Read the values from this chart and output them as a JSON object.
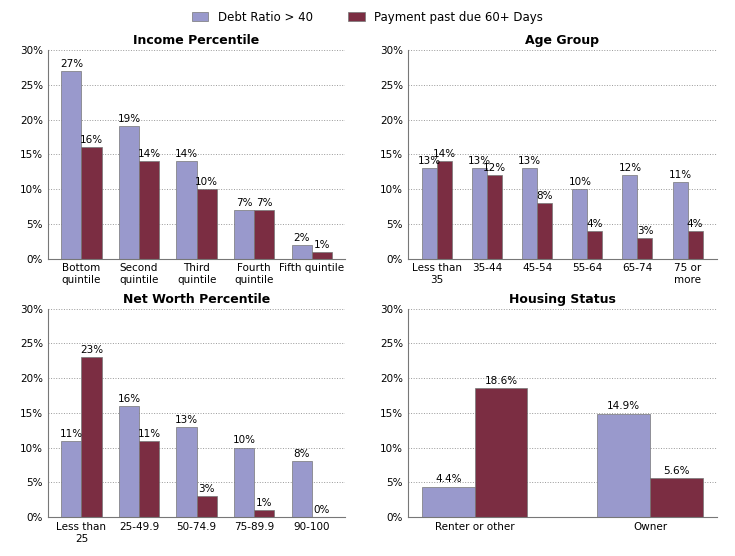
{
  "legend": {
    "label1": "Debt Ratio > 40",
    "label2": "Payment past due 60+ Days",
    "color1": "#9999CC",
    "color2": "#7B2D42"
  },
  "income": {
    "title": "Income Percentile",
    "categories": [
      "Bottom\nquintile",
      "Second\nquintile",
      "Third\nquintile",
      "Fourth\nquintile",
      "Fifth quintile"
    ],
    "debt": [
      27,
      19,
      14,
      7,
      2
    ],
    "payment": [
      16,
      14,
      10,
      7,
      1
    ]
  },
  "age": {
    "title": "Age Group",
    "categories": [
      "Less than\n35",
      "35-44",
      "45-54",
      "55-64",
      "65-74",
      "75 or\nmore"
    ],
    "debt": [
      13,
      13,
      13,
      10,
      12,
      11
    ],
    "payment": [
      14,
      12,
      8,
      4,
      3,
      4
    ]
  },
  "networth": {
    "title": "Net Worth Percentile",
    "categories": [
      "Less than\n25",
      "25-49.9",
      "50-74.9",
      "75-89.9",
      "90-100"
    ],
    "debt": [
      11,
      16,
      13,
      10,
      8
    ],
    "payment": [
      23,
      11,
      3,
      1,
      0
    ]
  },
  "housing": {
    "title": "Housing Status",
    "categories": [
      "Renter or other",
      "Owner"
    ],
    "debt": [
      4.4,
      14.9
    ],
    "payment": [
      18.6,
      5.6
    ]
  },
  "color_debt": "#9999CC",
  "color_payment": "#7B2D42",
  "ylim": [
    0,
    30
  ],
  "yticks": [
    0,
    5,
    10,
    15,
    20,
    25,
    30
  ],
  "yticklabels": [
    "0%",
    "5%",
    "10%",
    "15%",
    "20%",
    "25%",
    "30%"
  ],
  "bg_color": "#FFFFFF",
  "title_fontsize": 9,
  "tick_fontsize": 7.5,
  "bar_label_fontsize": 7.5
}
